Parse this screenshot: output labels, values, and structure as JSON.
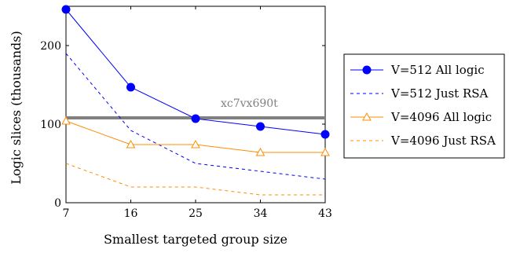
{
  "chart_data": {
    "type": "line",
    "xlabel": "Smallest targeted group size",
    "ylabel": "Logic slices (thousands)",
    "x": [
      7,
      16,
      25,
      34,
      43
    ],
    "xlim": [
      7,
      43
    ],
    "ylim": [
      0,
      250
    ],
    "xticks": [
      "7",
      "16",
      "25",
      "34",
      "43"
    ],
    "yticks": [
      {
        "value": 0,
        "label": "0"
      },
      {
        "value": 100,
        "label": "100"
      },
      {
        "value": 200,
        "label": "200"
      }
    ],
    "grid": false,
    "legend_position": "outside-right",
    "reference_line": {
      "value": 108,
      "label": "xc7vx690t",
      "color": "#808080"
    },
    "series": [
      {
        "name": "V=512 All logic",
        "values": [
          246,
          147,
          107,
          97,
          87
        ],
        "color": "#0000ff",
        "style": "solid",
        "marker": "circle"
      },
      {
        "name": "V=512 Just RSA",
        "values": [
          190,
          92,
          50,
          40,
          30
        ],
        "color": "#0000ff",
        "style": "dashed",
        "marker": "none"
      },
      {
        "name": "V=4096 All logic",
        "values": [
          104,
          74,
          74,
          64,
          64
        ],
        "color": "#ff8c00",
        "style": "solid",
        "marker": "triangle"
      },
      {
        "name": "V=4096 Just RSA",
        "values": [
          50,
          20,
          20,
          10,
          10
        ],
        "color": "#ff8c00",
        "style": "dashed",
        "marker": "none"
      }
    ]
  }
}
